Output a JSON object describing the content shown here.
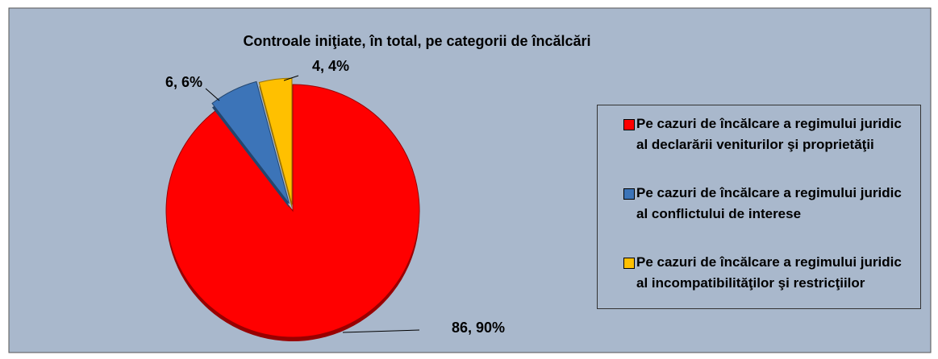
{
  "chart_data": {
    "type": "pie",
    "title": "Controale iniţiate, în total, pe categorii de încălcări",
    "categories": [
      "Pe cazuri de încălcare a regimului juridic al declarării veniturilor şi proprietăţii",
      "Pe cazuri de încălcare a regimului juridic al conflictului de interese",
      "Pe cazuri de încălcare a regimului juridic al incompatibilităţilor şi restricţiilor"
    ],
    "values": [
      86,
      6,
      4
    ],
    "value_labels": [
      "86, 90%",
      "6, 6%",
      "4, 4%"
    ],
    "colors": [
      "#ff0000",
      "#3c74b8",
      "#ffc000"
    ],
    "legend": "right"
  }
}
